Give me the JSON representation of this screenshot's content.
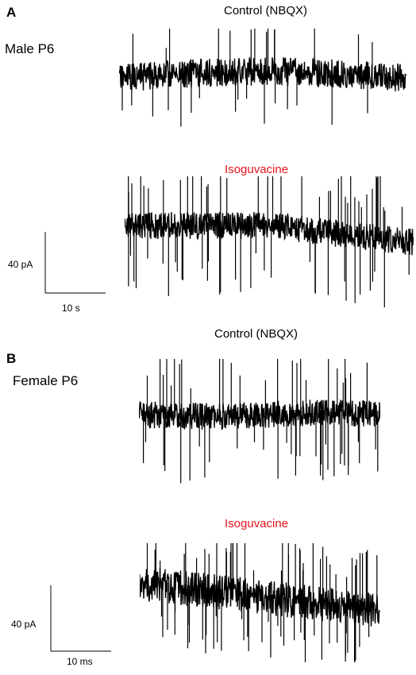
{
  "panels": [
    {
      "letter": "A",
      "group": "Male P6",
      "control_label": "Control (NBQX)",
      "drug_label": "Isoguvacine",
      "scale_amp": "40 pA",
      "scale_time": "10 s"
    },
    {
      "letter": "B",
      "group": "Female P6",
      "control_label": "Control (NBQX)",
      "drug_label": "Isoguvacine",
      "scale_amp": "40 pA",
      "scale_time": "10 ms"
    }
  ],
  "colors": {
    "trace": "#000000",
    "drug_label": "#e8151b"
  }
}
